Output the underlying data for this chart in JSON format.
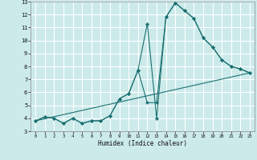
{
  "xlabel": "Humidex (Indice chaleur)",
  "bg_color": "#cceaea",
  "grid_color": "#ffffff",
  "line_color": "#1a7070",
  "line1": {
    "x": [
      0,
      1,
      2,
      3,
      4,
      5,
      6,
      7,
      8,
      9,
      10,
      11,
      12,
      13,
      14,
      15,
      16,
      17,
      18,
      19,
      20,
      21,
      22,
      23
    ],
    "y": [
      3.8,
      4.1,
      4.0,
      3.6,
      4.0,
      3.6,
      3.8,
      3.8,
      4.2,
      5.5,
      5.9,
      7.7,
      11.3,
      4.0,
      11.8,
      12.9,
      12.3,
      11.7,
      10.2,
      9.5,
      8.5,
      8.0,
      7.8,
      7.5
    ]
  },
  "line2": {
    "x": [
      0,
      23
    ],
    "y": [
      3.8,
      7.5
    ]
  },
  "line3": {
    "x": [
      0,
      1,
      2,
      3,
      4,
      5,
      6,
      7,
      8,
      9,
      10,
      11,
      12,
      13,
      14,
      15,
      16,
      17,
      18,
      19,
      20,
      21,
      22,
      23
    ],
    "y": [
      3.8,
      4.1,
      4.0,
      3.6,
      4.0,
      3.6,
      3.8,
      3.8,
      4.2,
      5.5,
      5.9,
      7.7,
      5.2,
      5.2,
      11.8,
      12.9,
      12.3,
      11.7,
      10.2,
      9.5,
      8.5,
      8.0,
      7.8,
      7.5
    ]
  },
  "xlim": [
    -0.5,
    23.5
  ],
  "ylim": [
    3,
    13
  ],
  "xticks": [
    0,
    1,
    2,
    3,
    4,
    5,
    6,
    7,
    8,
    9,
    10,
    11,
    12,
    13,
    14,
    15,
    16,
    17,
    18,
    19,
    20,
    21,
    22,
    23
  ],
  "yticks": [
    3,
    4,
    5,
    6,
    7,
    8,
    9,
    10,
    11,
    12,
    13
  ]
}
